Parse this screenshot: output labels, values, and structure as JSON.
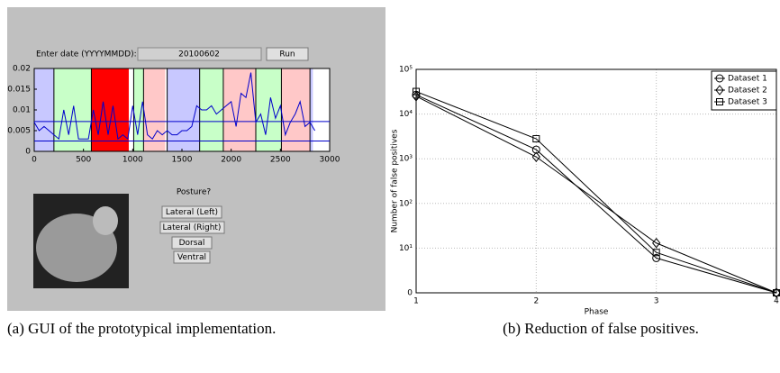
{
  "gui": {
    "date_label": "Enter date (YYYYMMDD):",
    "date_value": "20100602",
    "run_button": "Run",
    "posture_prompt": "Posture?",
    "posture_buttons": [
      "Lateral (Left)",
      "Lateral (Right)",
      "Dorsal",
      "Ventral"
    ]
  },
  "chart_data": [
    {
      "type": "line",
      "caption": "(a) GUI of the prototypical implementation.",
      "x": [
        0,
        50,
        100,
        150,
        200,
        250,
        300,
        350,
        400,
        450,
        500,
        550,
        600,
        650,
        700,
        750,
        800,
        850,
        900,
        950,
        1000,
        1050,
        1100,
        1150,
        1200,
        1250,
        1300,
        1350,
        1400,
        1450,
        1500,
        1550,
        1600,
        1650,
        1700,
        1750,
        1800,
        1850,
        1900,
        1950,
        2000,
        2050,
        2100,
        2150,
        2200,
        2250,
        2300,
        2350,
        2400,
        2450,
        2500,
        2550,
        2600,
        2650,
        2700,
        2750,
        2800,
        2850
      ],
      "series": [
        {
          "color": "#0000cc",
          "values": [
            0.007,
            0.005,
            0.006,
            0.005,
            0.004,
            0.003,
            0.01,
            0.004,
            0.011,
            0.003,
            0.003,
            0.003,
            0.01,
            0.004,
            0.012,
            0.004,
            0.011,
            0.003,
            0.004,
            0.003,
            0.011,
            0.004,
            0.012,
            0.004,
            0.003,
            0.005,
            0.004,
            0.005,
            0.004,
            0.004,
            0.005,
            0.005,
            0.006,
            0.011,
            0.01,
            0.01,
            0.011,
            0.009,
            0.01,
            0.011,
            0.012,
            0.006,
            0.014,
            0.013,
            0.019,
            0.007,
            0.009,
            0.004,
            0.013,
            0.008,
            0.011,
            0.004,
            0.007,
            0.009,
            0.012,
            0.006,
            0.007,
            0.005
          ]
        }
      ],
      "regions": [
        {
          "start": 0,
          "end": 200,
          "color": "#c8c8ff"
        },
        {
          "start": 200,
          "end": 580,
          "color": "#c8ffc8"
        },
        {
          "start": 580,
          "end": 960,
          "color": "#ff0000"
        },
        {
          "start": 1010,
          "end": 1110,
          "color": "#c8ffc8"
        },
        {
          "start": 1110,
          "end": 1330,
          "color": "#ffc8c8"
        },
        {
          "start": 1350,
          "end": 1680,
          "color": "#c8c8ff"
        },
        {
          "start": 1680,
          "end": 1920,
          "color": "#c8ffc8"
        },
        {
          "start": 1920,
          "end": 2250,
          "color": "#ffc8c8"
        },
        {
          "start": 2250,
          "end": 2510,
          "color": "#c8ffc8"
        },
        {
          "start": 2510,
          "end": 2800,
          "color": "#ffc8c8"
        },
        {
          "start": 2800,
          "end": 2830,
          "color": "#c8c8ff"
        }
      ],
      "reference_lines": [
        0.0072,
        0.0025
      ],
      "xlim": [
        0,
        3000
      ],
      "xticks": [
        0,
        500,
        1000,
        1500,
        2000,
        2500,
        3000
      ],
      "ylim": [
        0,
        0.02
      ],
      "yticks": [
        0,
        0.005,
        0.01,
        0.015,
        0.02
      ]
    },
    {
      "type": "line",
      "caption": "(b) Reduction of false positives.",
      "xlabel": "Phase",
      "ylabel": "Number of false positives",
      "x": [
        1,
        2,
        3,
        4
      ],
      "series": [
        {
          "name": "Dataset 1",
          "color": "#000000",
          "marker": "circle",
          "values": [
            27000,
            1600,
            6,
            1
          ]
        },
        {
          "name": "Dataset 2",
          "color": "#000000",
          "marker": "diamond",
          "values": [
            25000,
            1100,
            13,
            1
          ]
        },
        {
          "name": "Dataset 3",
          "color": "#000000",
          "marker": "square",
          "values": [
            32000,
            2800,
            8,
            1
          ]
        }
      ],
      "xlim": [
        1,
        4
      ],
      "xticks": [
        1,
        2,
        3,
        4
      ],
      "ylim": [
        1,
        100000
      ],
      "log_y": true,
      "grid": true,
      "legend": "upper right",
      "yticks": [
        {
          "value": 1,
          "label": "0"
        },
        {
          "value": 10,
          "label": "10¹"
        },
        {
          "value": 100,
          "label": "10²"
        },
        {
          "value": 1000,
          "label": "10³"
        },
        {
          "value": 10000,
          "label": "10⁴"
        },
        {
          "value": 100000,
          "label": "10⁵"
        }
      ]
    }
  ]
}
